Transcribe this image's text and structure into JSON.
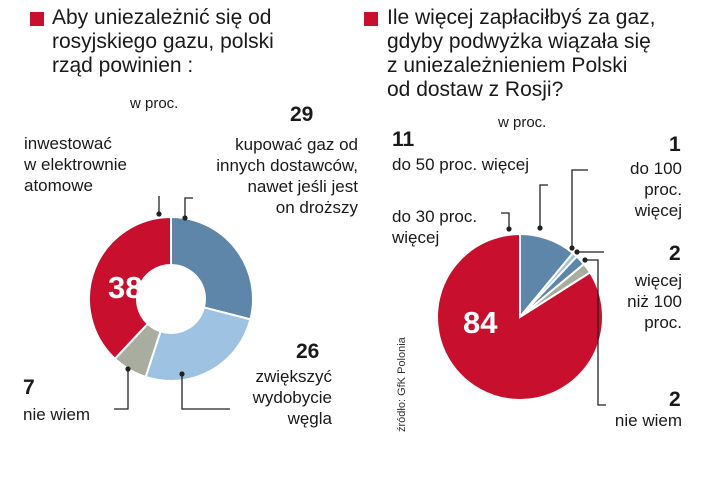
{
  "chart_data": [
    {
      "type": "pie",
      "variant": "donut",
      "title": "Aby uniezależnić się od\nrosyjskiego gazu, polski\nrząd powinien :",
      "unit": "w proc.",
      "slices": [
        {
          "label": "kupować gaz od\ninnych dostawców,\nnawet jeśli jest\non droższy",
          "value": 29,
          "color": "#5d86a8"
        },
        {
          "label": "zwiększyć\nwydobycie\nwęgla",
          "value": 26,
          "color": "#9ec3e2"
        },
        {
          "label": "nie wiem",
          "value": 7,
          "color": "#a9ad9f"
        },
        {
          "label": "inwestować\nw elektrownie\natomowe",
          "value": 38,
          "color": "#c8102e"
        }
      ]
    },
    {
      "type": "pie",
      "title": "Ile więcej zapłaciłbyś za gaz,\ngdyby podwyżka wiązała się\nz uniezależnieniem Polski\nod dostaw z Rosji?",
      "unit": "w proc.",
      "slices": [
        {
          "label": "do 50 proc. więcej",
          "value": 11,
          "color": "#5d86a8"
        },
        {
          "label": "do 100\nproc.\nwięcej",
          "value": 1,
          "color": "#9ec3e2"
        },
        {
          "label": "więcej\nniż 100\nproc.",
          "value": 2,
          "color": "#5d86a8"
        },
        {
          "label": "nie wiem",
          "value": 2,
          "color": "#a9ad9f"
        },
        {
          "label": "do 30 proc.\nwięcej",
          "value": 84,
          "color": "#c8102e"
        }
      ]
    }
  ],
  "source": "źródło: GfK Polonia"
}
